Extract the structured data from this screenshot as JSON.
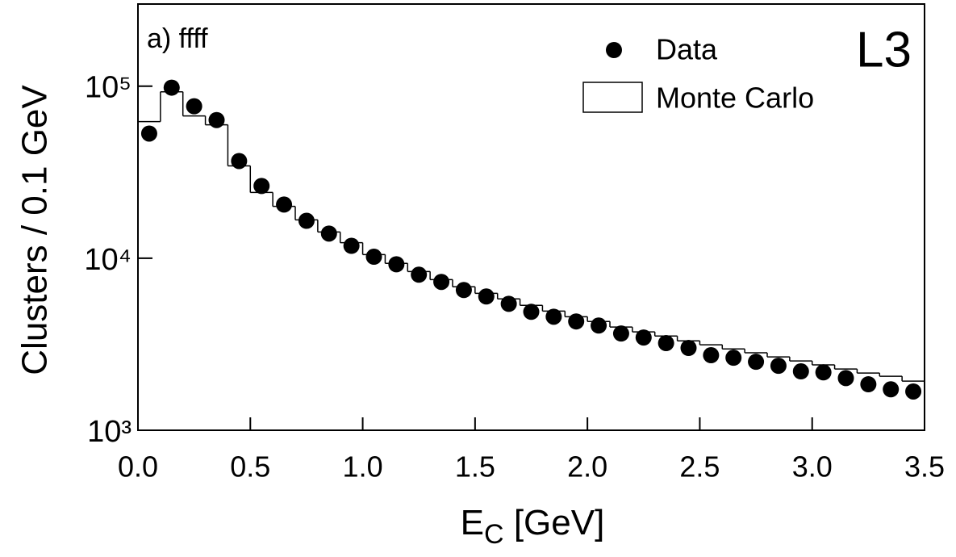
{
  "chart_data": {
    "type": "scatter",
    "ylabel": "Clusters /  0.1 GeV",
    "xlabel": "E",
    "xlabel_subscript": "C",
    "xlabel_unit": " [GeV]",
    "annotations": [
      "a) ffff",
      "L3"
    ],
    "xlim": [
      0,
      3.5
    ],
    "xticks": [
      {
        "value": 0,
        "label": "0.0"
      },
      0.5,
      {
        "value": 1,
        "label": "1.0"
      },
      1.5,
      {
        "value": 2,
        "label": "2.0"
      },
      2.5,
      {
        "value": 3,
        "label": "3.0"
      },
      3.5
    ],
    "ylim": [
      1000,
      300000
    ],
    "ylog": true,
    "yticks": [
      {
        "value": 1000,
        "label": "10³"
      },
      {
        "value": 10000,
        "label": "10⁴"
      },
      {
        "value": 100000,
        "label": "10⁵"
      }
    ],
    "legend": "top-right",
    "series": [
      {
        "name": "Data",
        "type": "scatter",
        "color": "#000000",
        "x": [
          0.05,
          0.15,
          0.25,
          0.35,
          0.45,
          0.55,
          0.65,
          0.75,
          0.85,
          0.95,
          1.05,
          1.15,
          1.25,
          1.35,
          1.45,
          1.55,
          1.65,
          1.75,
          1.85,
          1.95,
          2.05,
          2.15,
          2.25,
          2.35,
          2.45,
          2.55,
          2.65,
          2.75,
          2.85,
          2.95,
          3.05,
          3.15,
          3.25,
          3.35,
          3.45
        ],
        "values": [
          53000,
          98000,
          76400,
          63500,
          36700,
          26300,
          20500,
          16500,
          13900,
          11800,
          10200,
          9220,
          8020,
          7280,
          6530,
          5990,
          5430,
          4880,
          4570,
          4290,
          4060,
          3650,
          3460,
          3210,
          3010,
          2730,
          2640,
          2500,
          2370,
          2200,
          2170,
          2010,
          1850,
          1730,
          1680
        ]
      },
      {
        "name": "Monte Carlo",
        "type": "histogram",
        "color": "#000000",
        "bins": [
          0,
          0.1,
          0.2,
          0.3,
          0.4,
          0.5,
          0.6,
          0.7,
          0.8,
          0.9,
          1.0,
          1.1,
          1.2,
          1.3,
          1.4,
          1.5,
          1.6,
          1.7,
          1.8,
          1.9,
          2.0,
          2.1,
          2.2,
          2.3,
          2.4,
          2.5,
          2.6,
          2.7,
          2.8,
          2.9,
          3.0,
          3.1,
          3.2,
          3.3,
          3.4,
          3.5
        ],
        "values": [
          62200,
          92700,
          67100,
          59600,
          34400,
          24100,
          20000,
          16700,
          14200,
          12300,
          10500,
          9330,
          8370,
          7510,
          6820,
          6250,
          5800,
          5320,
          4930,
          4570,
          4290,
          3980,
          3730,
          3530,
          3310,
          3140,
          2970,
          2820,
          2670,
          2530,
          2400,
          2270,
          2150,
          2060,
          1930
        ]
      }
    ]
  }
}
